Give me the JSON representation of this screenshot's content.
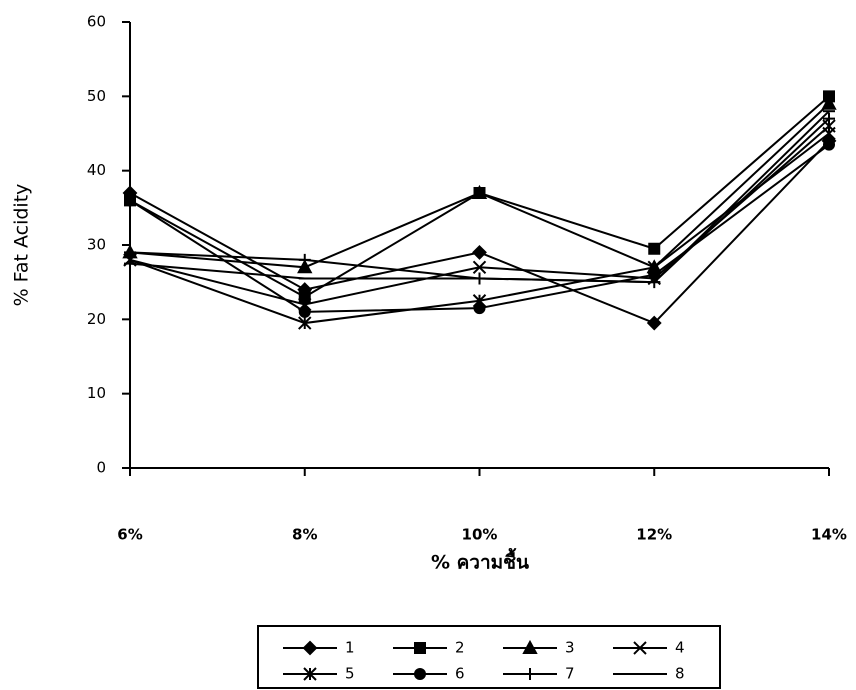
{
  "chart_data": {
    "type": "line",
    "categories": [
      "6%",
      "8%",
      "10%",
      "12%",
      "14%"
    ],
    "x_label": "% ความชื้น",
    "y_label": "% Fat  Acidity",
    "ylim": [
      0,
      60
    ],
    "yticks": [
      0,
      10,
      20,
      30,
      40,
      50,
      60
    ],
    "grid": false,
    "legend": "bottom",
    "series": [
      {
        "name": "1",
        "color": "#000000",
        "marker": "diamond",
        "values": [
          37,
          24,
          29,
          19.5,
          44
        ]
      },
      {
        "name": "2",
        "color": "#000000",
        "marker": "square",
        "values": [
          36,
          23,
          37,
          29.5,
          50
        ]
      },
      {
        "name": "3",
        "color": "#000000",
        "marker": "triangle",
        "values": [
          29,
          27,
          37,
          27,
          49
        ]
      },
      {
        "name": "4",
        "color": "#000000",
        "marker": "x",
        "values": [
          28,
          22,
          27,
          25.5,
          46
        ]
      },
      {
        "name": "5",
        "color": "#000000",
        "marker": "star",
        "values": [
          28,
          19.5,
          22.5,
          27,
          45
        ]
      },
      {
        "name": "6",
        "color": "#000000",
        "marker": "circle",
        "values": [
          36,
          21,
          21.5,
          26,
          43.5
        ]
      },
      {
        "name": "7",
        "color": "#000000",
        "marker": "plus",
        "values": [
          29,
          28,
          25.5,
          25,
          47
        ]
      },
      {
        "name": "8",
        "color": "#000000",
        "marker": "dash",
        "values": [
          27.5,
          25.5,
          25.5,
          25,
          48
        ]
      }
    ]
  }
}
